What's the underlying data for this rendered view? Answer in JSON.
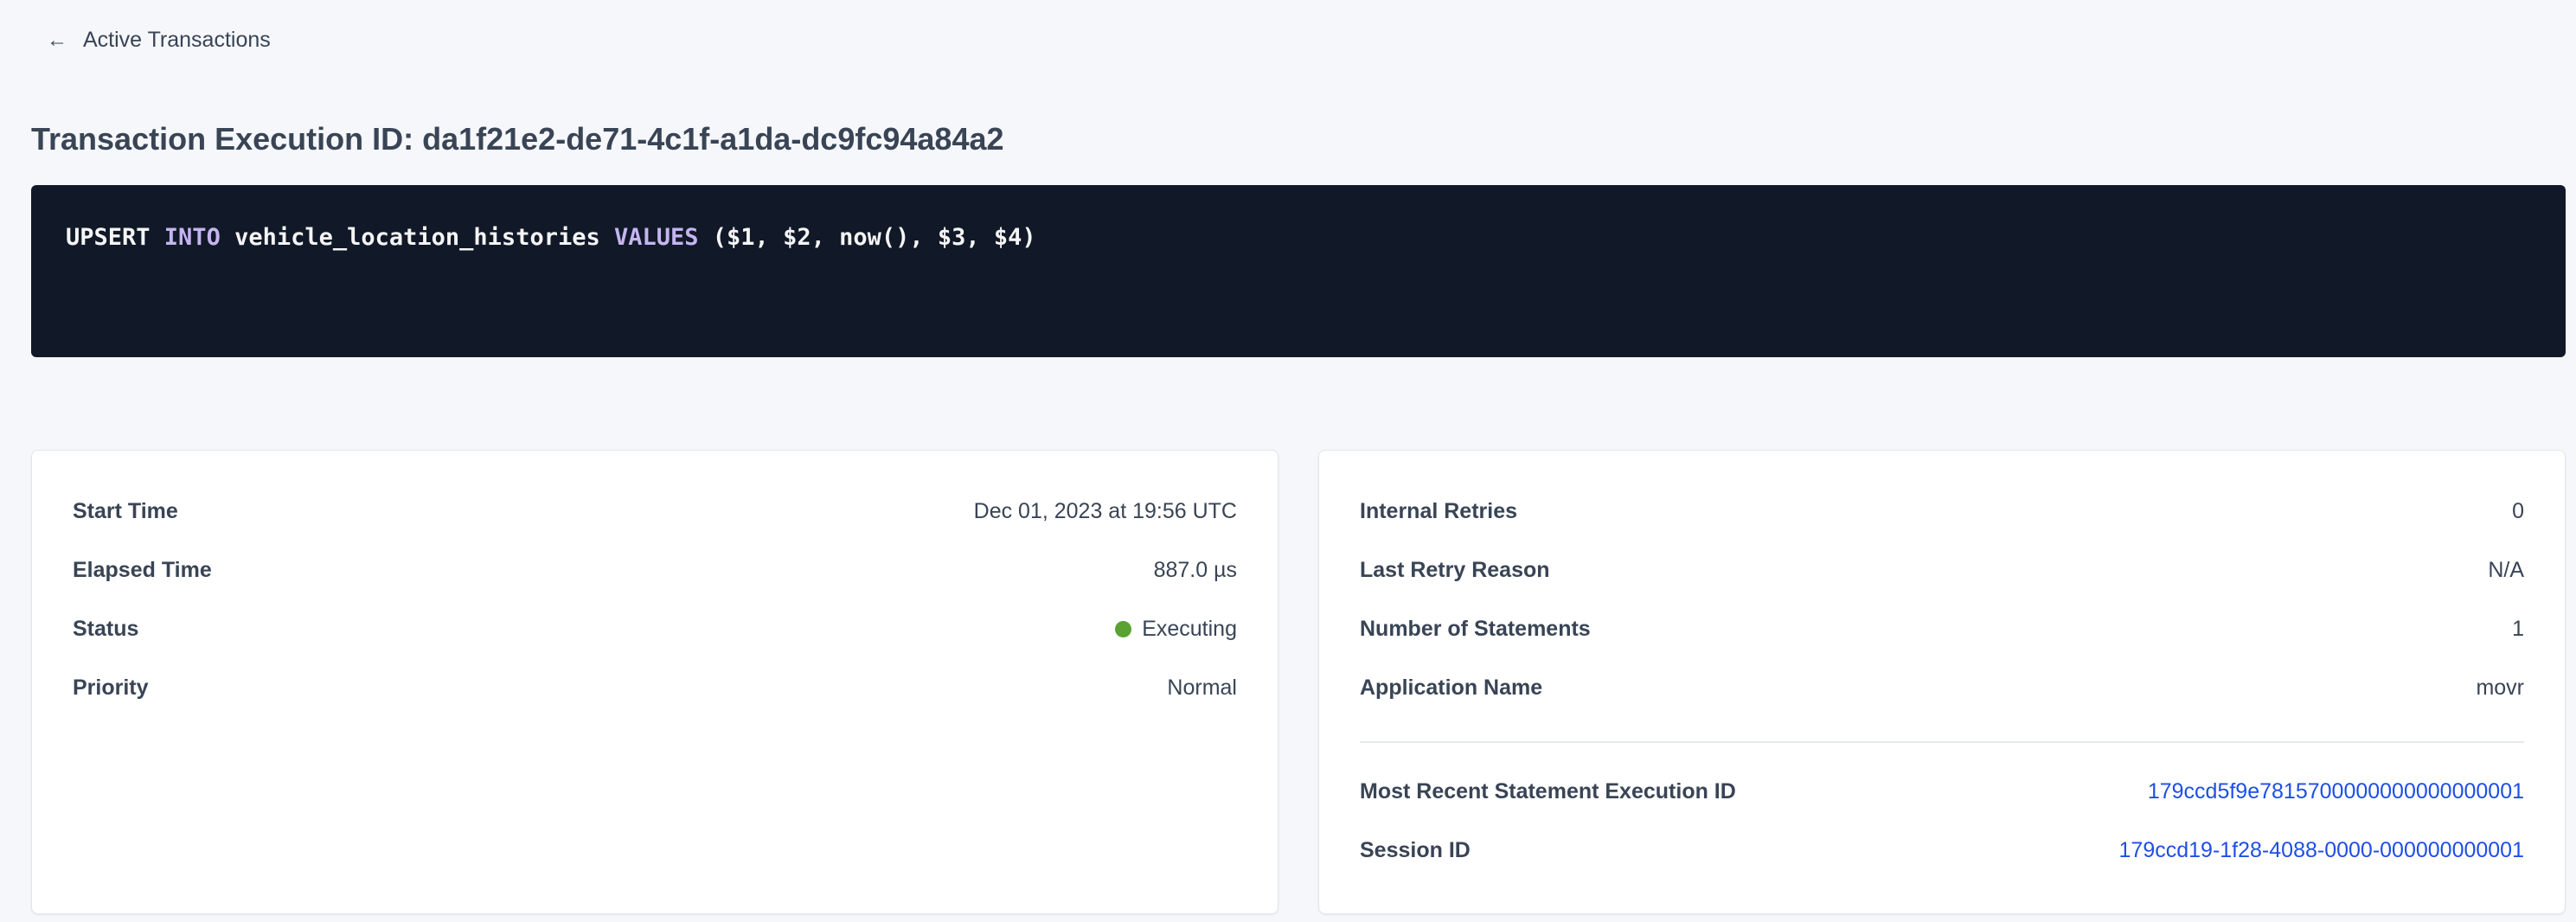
{
  "back_link": {
    "label": "Active Transactions",
    "icon": "arrow-left-icon"
  },
  "title": "Transaction Execution ID: da1f21e2-de71-4c1f-a1da-dc9fc94a84a2",
  "sql": {
    "t1": "UPSERT ",
    "k1": "INTO",
    "t2": " vehicle_location_histories ",
    "k2": "VALUES",
    "t3": " ($1, $2, now(), $3, $4)"
  },
  "colors": {
    "keyword": "#c4b5f0",
    "link": "#1f4ee6",
    "status_executing": "#5aa232",
    "code_bg": "#111827"
  },
  "left_card": {
    "rows": [
      {
        "label": "Start Time",
        "value": "Dec 01, 2023 at 19:56 UTC"
      },
      {
        "label": "Elapsed Time",
        "value": "887.0 µs"
      },
      {
        "label": "Status",
        "value": "Executing"
      },
      {
        "label": "Priority",
        "value": "Normal"
      }
    ]
  },
  "right_card": {
    "rows": [
      {
        "label": "Internal Retries",
        "value": "0"
      },
      {
        "label": "Last Retry Reason",
        "value": "N/A"
      },
      {
        "label": "Number of Statements",
        "value": "1"
      },
      {
        "label": "Application Name",
        "value": "movr"
      }
    ],
    "links": [
      {
        "label": "Most Recent Statement Execution ID",
        "value": "179ccd5f9e7815700000000000000001"
      },
      {
        "label": "Session ID",
        "value": "179ccd19-1f28-4088-0000-000000000001"
      }
    ]
  }
}
